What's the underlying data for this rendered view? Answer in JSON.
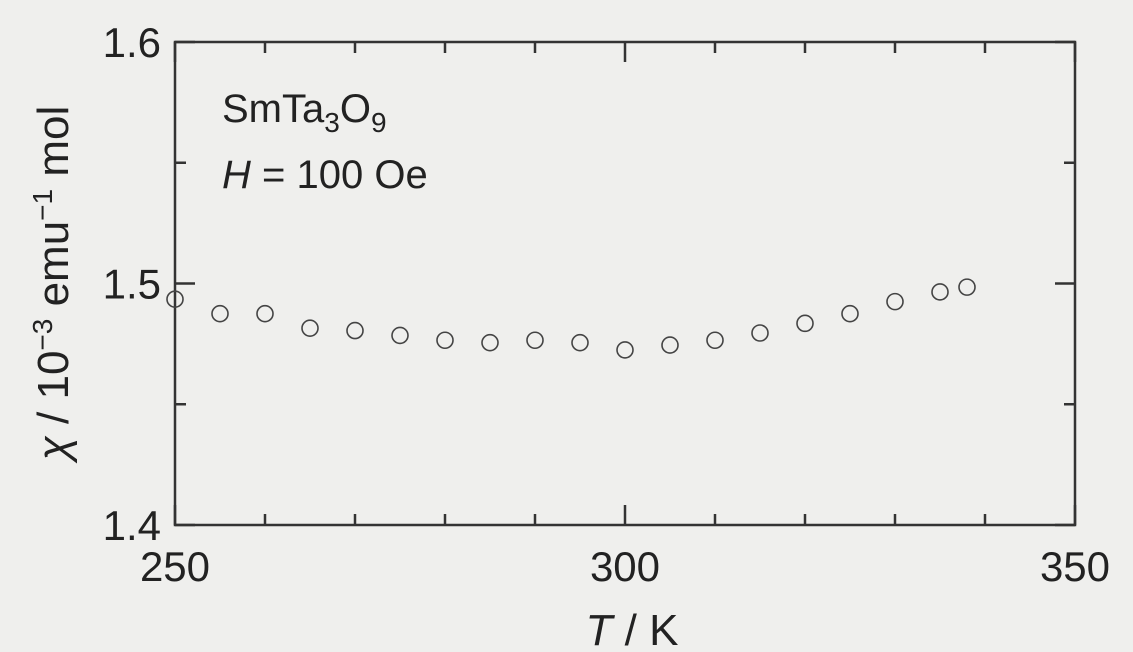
{
  "chart_data": {
    "type": "scatter",
    "title": "",
    "annotation": {
      "compound_base": "SmTa",
      "compound_sub1": "3",
      "compound_mid": "O",
      "compound_sub2": "9",
      "field_var": "H",
      "field_rest": " = 100 Oe"
    },
    "xlabel": {
      "var": "T",
      "rest": " / K"
    },
    "ylabel": {
      "var": "χ",
      "rest1": " / 10",
      "sup1": "−3",
      "rest2": " emu",
      "sup2": "−1",
      "rest3": " mol"
    },
    "xlim": [
      250,
      350
    ],
    "ylim": [
      1.4,
      1.6
    ],
    "xticks_major": [
      250,
      300,
      350
    ],
    "xtick_labels": [
      "250",
      "300",
      "350"
    ],
    "xticks_minor": [
      260,
      270,
      280,
      290,
      310,
      320,
      330,
      340
    ],
    "yticks_major": [
      1.4,
      1.5,
      1.6
    ],
    "ytick_labels": [
      "1.4",
      "1.5",
      "1.6"
    ],
    "yticks_minor": [
      1.45,
      1.55
    ],
    "marker": "open-circle",
    "x": [
      250,
      255,
      260,
      265,
      270,
      275,
      280,
      285,
      290,
      295,
      300,
      305,
      310,
      315,
      320,
      325,
      330,
      335,
      338
    ],
    "y": [
      1.4935,
      1.4875,
      1.4875,
      1.4815,
      1.4805,
      1.4785,
      1.4765,
      1.4755,
      1.4765,
      1.4755,
      1.4725,
      1.4745,
      1.4765,
      1.4795,
      1.4835,
      1.4875,
      1.4925,
      1.4965,
      1.4985
    ]
  }
}
